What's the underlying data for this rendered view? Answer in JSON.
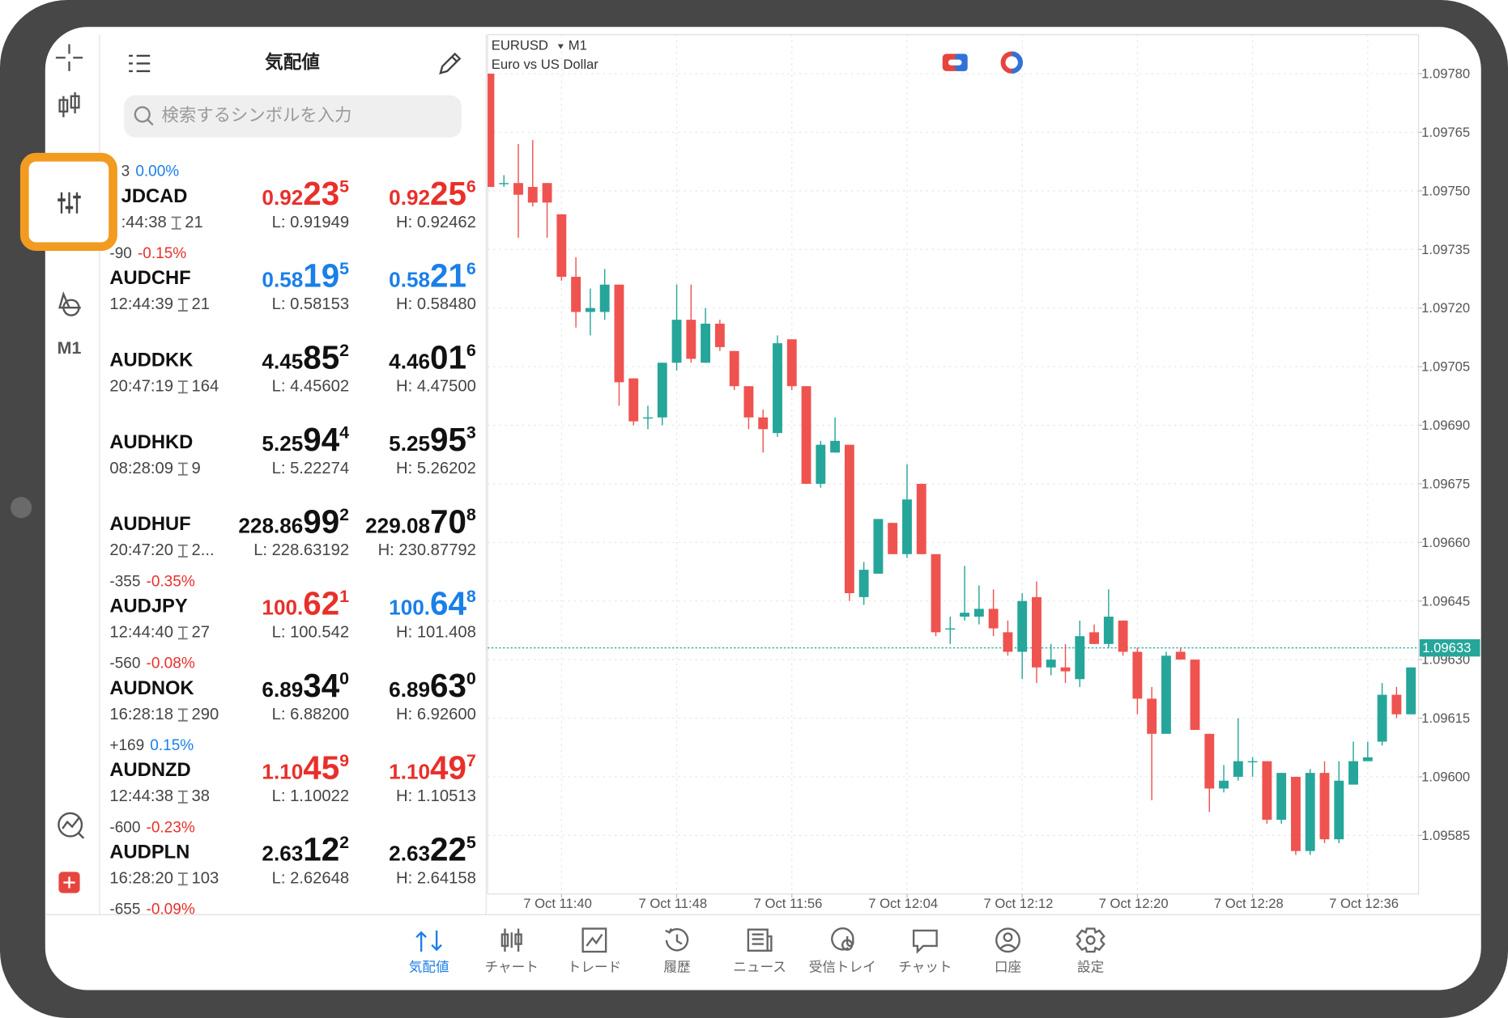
{
  "toolbar": {
    "timeframe": "M1"
  },
  "watchlist": {
    "title": "気配値",
    "search_placeholder": "検索するシンボルを入力",
    "rows": [
      {
        "change": "3",
        "change_pct": "0.00%",
        "pct_color": "#1a7fe8",
        "symbol": "JDCAD",
        "time": ":44:38",
        "spread": "21",
        "bid": [
          "0.92",
          "23",
          "5"
        ],
        "ask": [
          "0.92",
          "25",
          "6"
        ],
        "bid_color": "#e8302b",
        "ask_color": "#e8302b",
        "low": "L: 0.91949",
        "high": "H: 0.92462"
      },
      {
        "change": "-90",
        "change_pct": "-0.15%",
        "pct_color": "#e8302b",
        "symbol": "AUDCHF",
        "time": "12:44:39",
        "spread": "21",
        "bid": [
          "0.58",
          "19",
          "5"
        ],
        "ask": [
          "0.58",
          "21",
          "6"
        ],
        "bid_color": "#1a7fe8",
        "ask_color": "#1a7fe8",
        "low": "L: 0.58153",
        "high": "H: 0.58480"
      },
      {
        "symbol": "AUDDKK",
        "time": "20:47:19",
        "spread": "164",
        "bid": [
          "4.45",
          "85",
          "2"
        ],
        "ask": [
          "4.46",
          "01",
          "6"
        ],
        "bid_color": "#111111",
        "ask_color": "#111111",
        "low": "L: 4.45602",
        "high": "H: 4.47500"
      },
      {
        "symbol": "AUDHKD",
        "time": "08:28:09",
        "spread": "9",
        "bid": [
          "5.25",
          "94",
          "4"
        ],
        "ask": [
          "5.25",
          "95",
          "3"
        ],
        "bid_color": "#111111",
        "ask_color": "#111111",
        "low": "L: 5.22274",
        "high": "H: 5.26202"
      },
      {
        "symbol": "AUDHUF",
        "time": "20:47:20",
        "spread": "2...",
        "bid": [
          "228.86",
          "99",
          "2"
        ],
        "ask": [
          "229.08",
          "70",
          "8"
        ],
        "bid_color": "#111111",
        "ask_color": "#111111",
        "low": "L: 228.63192",
        "high": "H: 230.87792"
      },
      {
        "change": "-355",
        "change_pct": "-0.35%",
        "pct_color": "#e8302b",
        "symbol": "AUDJPY",
        "time": "12:44:40",
        "spread": "27",
        "bid": [
          "100.",
          "62",
          "1"
        ],
        "ask": [
          "100.",
          "64",
          "8"
        ],
        "bid_color": "#e8302b",
        "ask_color": "#1a7fe8",
        "low": "L: 100.542",
        "high": "H: 101.408"
      },
      {
        "change": "-560",
        "change_pct": "-0.08%",
        "pct_color": "#e8302b",
        "symbol": "AUDNOK",
        "time": "16:28:18",
        "spread": "290",
        "bid": [
          "6.89",
          "34",
          "0"
        ],
        "ask": [
          "6.89",
          "63",
          "0"
        ],
        "bid_color": "#111111",
        "ask_color": "#111111",
        "low": "L: 6.88200",
        "high": "H: 6.92600"
      },
      {
        "change": "+169",
        "change_pct": "0.15%",
        "pct_color": "#1a7fe8",
        "symbol": "AUDNZD",
        "time": "12:44:38",
        "spread": "38",
        "bid": [
          "1.10",
          "45",
          "9"
        ],
        "ask": [
          "1.10",
          "49",
          "7"
        ],
        "bid_color": "#e8302b",
        "ask_color": "#e8302b",
        "low": "L: 1.10022",
        "high": "H: 1.10513"
      },
      {
        "change": "-600",
        "change_pct": "-0.23%",
        "pct_color": "#e8302b",
        "symbol": "AUDPLN",
        "time": "16:28:20",
        "spread": "103",
        "bid": [
          "2.63",
          "12",
          "2"
        ],
        "ask": [
          "2.63",
          "22",
          "5"
        ],
        "bid_color": "#111111",
        "ask_color": "#111111",
        "low": "L: 2.62648",
        "high": "H: 2.64158"
      },
      {
        "change": "-655",
        "change_pct": "-0.09%",
        "pct_color": "#e8302b"
      }
    ]
  },
  "chart_data": {
    "type": "candlestick",
    "symbol": "EURUSD",
    "timeframe": "M1",
    "description": "Euro vs US Dollar",
    "open": [
      1.0978,
      1.09752,
      1.09752,
      1.09751,
      1.09752,
      1.09744,
      1.09728,
      1.09719,
      1.09719,
      1.09726,
      1.09702,
      1.09692,
      1.09692,
      1.09706,
      1.09717,
      1.09706,
      1.09716,
      1.09709,
      1.097,
      1.09692,
      1.09688,
      1.09712,
      1.097,
      1.09675,
      1.09683,
      1.09685,
      1.09646,
      1.09652,
      1.09665,
      1.09657,
      1.09675,
      1.09657,
      1.09638,
      1.09641,
      1.09641,
      1.09643,
      1.09637,
      1.09632,
      1.09646,
      1.09628,
      1.09628,
      1.09625,
      1.09637,
      1.09634,
      1.0964,
      1.09632,
      1.0962,
      1.09611,
      1.09632,
      1.0963,
      1.09611,
      1.09597,
      1.096,
      1.09604,
      1.09604,
      1.09589,
      1.096,
      1.09581,
      1.09601,
      1.09584,
      1.09598,
      1.09604,
      1.09609,
      1.09621,
      1.09616
    ],
    "high": [
      1.0978,
      1.09754,
      1.09762,
      1.09763,
      1.09752,
      1.09744,
      1.09733,
      1.09725,
      1.0973,
      1.09726,
      1.09702,
      1.09695,
      1.09706,
      1.09726,
      1.09726,
      1.0972,
      1.09717,
      1.09709,
      1.097,
      1.09694,
      1.09713,
      1.09712,
      1.097,
      1.09686,
      1.09692,
      1.09685,
      1.09655,
      1.09666,
      1.09665,
      1.0968,
      1.09675,
      1.09657,
      1.09641,
      1.09654,
      1.09649,
      1.09648,
      1.0964,
      1.09647,
      1.0965,
      1.09634,
      1.09634,
      1.0964,
      1.09639,
      1.09648,
      1.0964,
      1.09633,
      1.09623,
      1.09632,
      1.09633,
      1.0963,
      1.09611,
      1.09603,
      1.09615,
      1.09605,
      1.09604,
      1.09601,
      1.096,
      1.09602,
      1.09604,
      1.09604,
      1.09609,
      1.09609,
      1.09624,
      1.09623,
      1.09628
    ],
    "low": [
      1.09751,
      1.09751,
      1.09738,
      1.09746,
      1.09738,
      1.09727,
      1.09715,
      1.09713,
      1.09717,
      1.09695,
      1.0969,
      1.09689,
      1.0969,
      1.09704,
      1.09706,
      1.09706,
      1.09709,
      1.09699,
      1.09689,
      1.09683,
      1.09687,
      1.09699,
      1.09675,
      1.09674,
      1.09683,
      1.09645,
      1.09644,
      1.09652,
      1.09657,
      1.09656,
      1.09657,
      1.09636,
      1.09634,
      1.0964,
      1.09639,
      1.09636,
      1.09631,
      1.09625,
      1.09624,
      1.09626,
      1.09624,
      1.09623,
      1.09634,
      1.09633,
      1.09631,
      1.09616,
      1.09594,
      1.09611,
      1.0963,
      1.09612,
      1.09591,
      1.09596,
      1.09599,
      1.096,
      1.09588,
      1.09588,
      1.0958,
      1.0958,
      1.09583,
      1.09583,
      1.09598,
      1.09604,
      1.09608,
      1.09615,
      1.09616
    ],
    "close": [
      1.09751,
      1.09752,
      1.09749,
      1.09747,
      1.09747,
      1.09728,
      1.09719,
      1.0972,
      1.09726,
      1.09701,
      1.09691,
      1.09692,
      1.09706,
      1.09717,
      1.09707,
      1.09716,
      1.0971,
      1.097,
      1.09692,
      1.09689,
      1.09711,
      1.097,
      1.09675,
      1.09685,
      1.09686,
      1.09647,
      1.09653,
      1.09666,
      1.09657,
      1.09671,
      1.09657,
      1.09637,
      1.09638,
      1.09642,
      1.09643,
      1.09638,
      1.09632,
      1.09645,
      1.09628,
      1.0963,
      1.09627,
      1.09636,
      1.09634,
      1.09641,
      1.09632,
      1.0962,
      1.09611,
      1.09631,
      1.0963,
      1.09612,
      1.09597,
      1.09599,
      1.09604,
      1.09604,
      1.09589,
      1.09601,
      1.09581,
      1.09601,
      1.09584,
      1.09599,
      1.09604,
      1.09605,
      1.09621,
      1.09616,
      1.09628
    ],
    "up_color": "#26a69a",
    "down_color": "#ef5350",
    "current_price": 1.09633,
    "ylim": [
      1.0957,
      1.0979
    ],
    "yticks": [
      {
        "value": 1.0978,
        "label": "1.09780"
      },
      1.09765,
      {
        "value": 1.0975,
        "label": "1.09750"
      },
      1.09735,
      {
        "value": 1.0972,
        "label": "1.09720"
      },
      1.09705,
      {
        "value": 1.0969,
        "label": "1.09690"
      },
      1.09675,
      {
        "value": 1.0966,
        "label": "1.09660"
      },
      1.09645,
      {
        "value": 1.0963,
        "label": "1.09630"
      },
      1.09615,
      {
        "value": 1.096,
        "label": "1.09600"
      },
      1.09585
    ],
    "xticks": [
      "7 Oct 11:40",
      "7 Oct 11:48",
      "7 Oct 11:56",
      "7 Oct 12:04",
      "7 Oct 12:12",
      "7 Oct 12:20",
      "7 Oct 12:28",
      "7 Oct 12:36"
    ],
    "grid": true
  },
  "tabs": [
    {
      "label": "気配値",
      "active": true
    },
    {
      "label": "チャート",
      "active": false
    },
    {
      "label": "トレード",
      "active": false
    },
    {
      "label": "履歴",
      "active": false
    },
    {
      "label": "ニュース",
      "active": false
    },
    {
      "label": "受信トレイ",
      "active": false
    },
    {
      "label": "チャット",
      "active": false
    },
    {
      "label": "口座",
      "active": false
    },
    {
      "label": "設定",
      "active": false
    }
  ]
}
